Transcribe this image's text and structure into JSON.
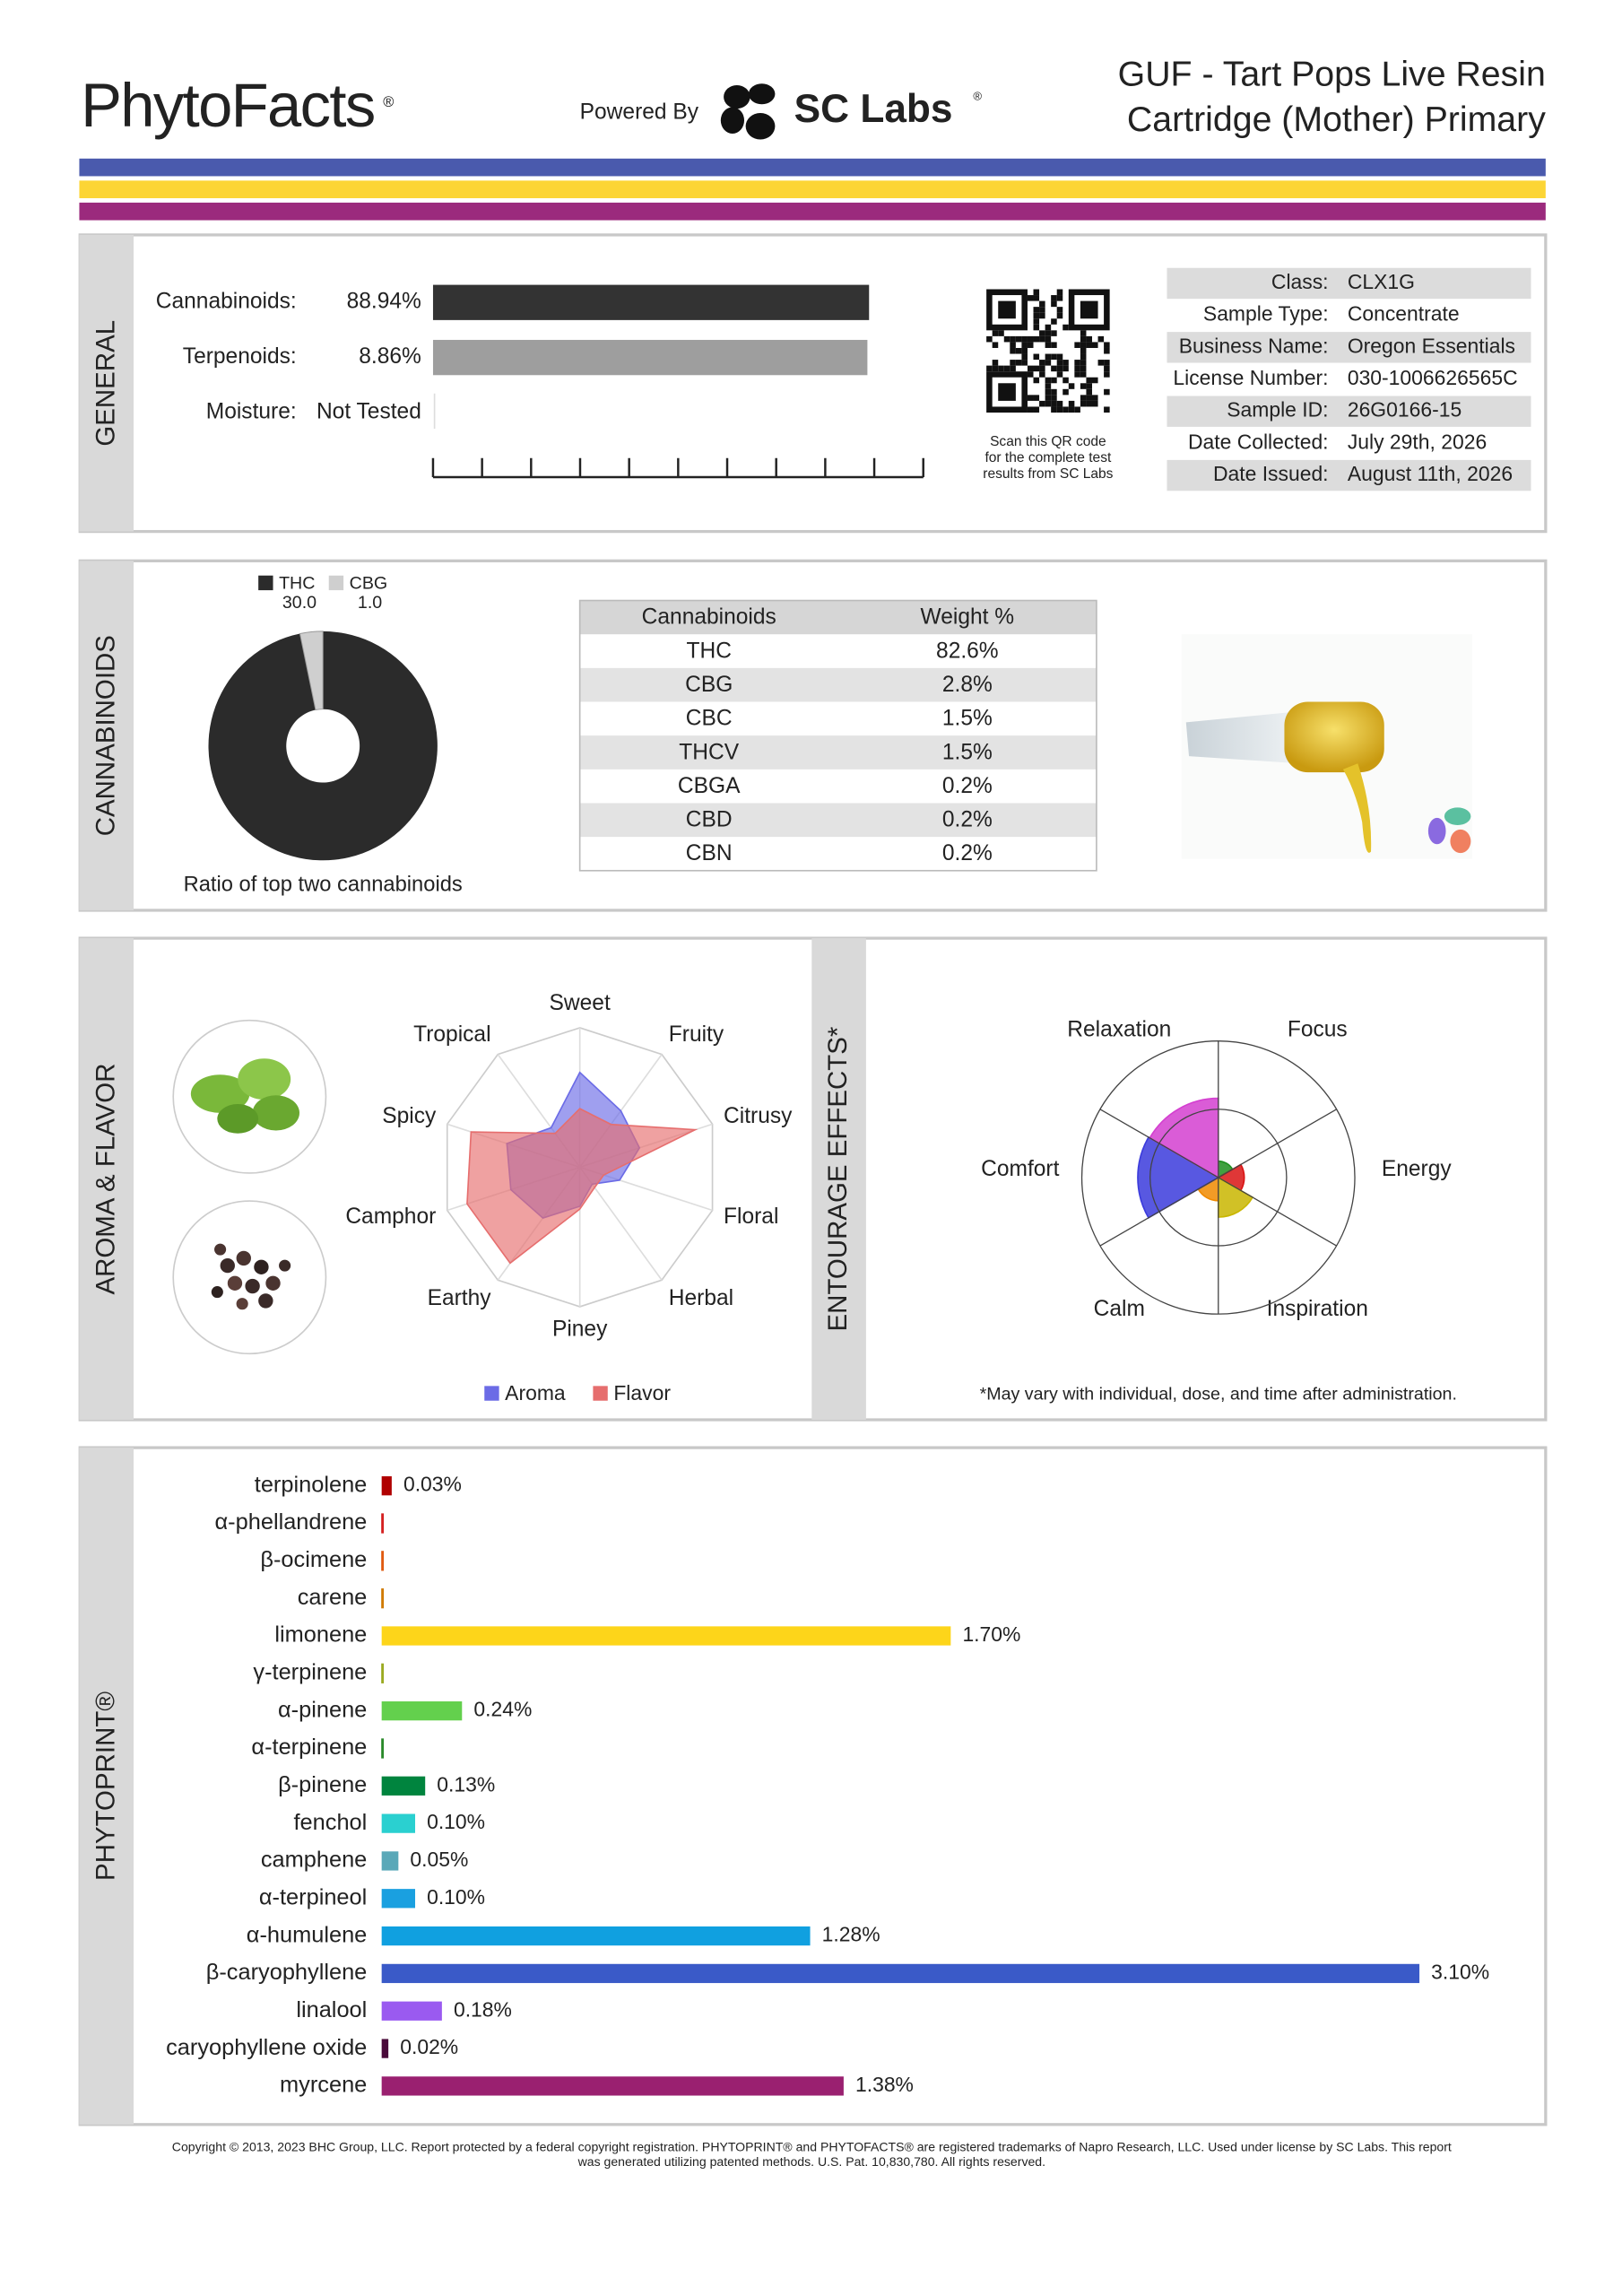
{
  "header": {
    "brand": "PhytoFacts",
    "brand_mark": "®",
    "powered_by": "Powered By",
    "lab": "SC Labs",
    "lab_mark": "®",
    "title_lines": [
      "GUF - Tart Pops Live Resin",
      "Cartridge (Mother) Primary"
    ],
    "stripe_colors": [
      "#4a5aad",
      "#fcd535",
      "#9b2a7d"
    ]
  },
  "general": {
    "section_label": "GENERAL",
    "type": "bar",
    "xlim": [
      0,
      100
    ],
    "xticks": [
      0,
      10,
      20,
      30,
      40,
      50,
      60,
      70,
      80,
      90,
      100
    ],
    "rows": [
      {
        "label": "Cannabinoids:",
        "value": 88.94,
        "value_label": "88.94%",
        "color": "#333333"
      },
      {
        "label": "Terpenoids:",
        "value": 8.86,
        "value_label": "8.86%",
        "color": "#9e9e9e",
        "xlim": [
          0,
          10
        ]
      },
      {
        "label": "Moisture:",
        "value": null,
        "value_label": "Not Tested"
      }
    ],
    "qr_caption": [
      "Scan this QR code",
      "for the complete test",
      "results from SC Labs"
    ],
    "info": [
      [
        "Class:",
        "CLX1G"
      ],
      [
        "Sample Type:",
        "Concentrate"
      ],
      [
        "Business Name:",
        "Oregon Essentials"
      ],
      [
        "License Number:",
        "030-1006626565C"
      ],
      [
        "Sample ID:",
        "26G0166-15"
      ],
      [
        "Date Collected:",
        "July 29th, 2026"
      ],
      [
        "Date Issued:",
        "August 11th, 2026"
      ]
    ]
  },
  "cannabinoids": {
    "section_label": "CANNABINOIDS",
    "pie": {
      "type": "pie",
      "series": [
        {
          "name": "THC",
          "value": 30,
          "value_label": "30.0",
          "color": "#2b2b2b"
        },
        {
          "name": "CBG",
          "value": 1,
          "value_label": "1.0",
          "color": "#cfcfcf"
        }
      ],
      "caption": "Ratio of top two cannabinoids"
    },
    "table": {
      "header": [
        "Cannabinoids",
        "Weight %"
      ],
      "rows": [
        [
          "THC",
          "82.6%"
        ],
        [
          "CBG",
          "2.8%"
        ],
        [
          "CBC",
          "1.5%"
        ],
        [
          "THCV",
          "1.5%"
        ],
        [
          "CBGA",
          "0.2%"
        ],
        [
          "CBD",
          "0.2%"
        ],
        [
          "CBN",
          "0.2%"
        ]
      ]
    }
  },
  "aroma": {
    "section_label": "AROMA & FLAVOR",
    "type": "radar",
    "axes": [
      "Sweet",
      "Fruity",
      "Citrusy",
      "Floral",
      "Herbal",
      "Piney",
      "Earthy",
      "Camphor",
      "Spicy",
      "Tropical"
    ],
    "rlim": [
      0,
      1
    ],
    "series": [
      {
        "name": "Aroma",
        "color": "#6b6be6",
        "values": [
          0.68,
          0.5,
          0.45,
          0.3,
          0.15,
          0.28,
          0.45,
          0.52,
          0.55,
          0.35
        ]
      },
      {
        "name": "Flavor",
        "color": "#e66e6e",
        "values": [
          0.42,
          0.38,
          0.87,
          0.18,
          0.18,
          0.3,
          0.85,
          0.85,
          0.82,
          0.3
        ]
      }
    ]
  },
  "entourage": {
    "section_label": "ENTOURAGE EFFECTS*",
    "type": "polar_area",
    "categories": [
      "Focus",
      "Energy",
      "Inspiration",
      "Calm",
      "Comfort",
      "Relaxation"
    ],
    "colors": [
      "#1f8f1f",
      "#d91414",
      "#c9b600",
      "#f08a00",
      "#3b3bdc",
      "#d43fd0"
    ],
    "values": [
      0.12,
      0.19,
      0.29,
      0.17,
      0.59,
      0.58
    ],
    "rlim": [
      0,
      1
    ],
    "rticks": [
      0.5,
      1
    ],
    "footnote": "*May vary with individual, dose, and time after administration."
  },
  "phytoprint": {
    "section_label": "PHYTOPRINT®",
    "type": "bar",
    "xlim": [
      0,
      3.1
    ],
    "categories": [
      "terpinolene",
      "α-phellandrene",
      "β-ocimene",
      "carene",
      "limonene",
      "γ-terpinene",
      "α-pinene",
      "α-terpinene",
      "β-pinene",
      "fenchol",
      "camphene",
      "α-terpineol",
      "α-humulene",
      "β-caryophyllene",
      "linalool",
      "caryophyllene oxide",
      "myrcene"
    ],
    "colors": [
      "#b00000",
      "#d42020",
      "#e05a10",
      "#d07a00",
      "#fdd51a",
      "#9aaa20",
      "#63d04d",
      "#2a8a2a",
      "#00843e",
      "#2ad0d0",
      "#5aa8b8",
      "#1aa0e0",
      "#10a0e0",
      "#3a5ac8",
      "#9a5af0",
      "#4a0a3a",
      "#9a2070"
    ],
    "values": [
      0.03,
      0.005,
      0.005,
      0.005,
      1.7,
      0.005,
      0.24,
      0.005,
      0.13,
      0.1,
      0.05,
      0.1,
      1.28,
      3.1,
      0.18,
      0.02,
      1.38
    ],
    "value_labels": [
      "0.03%",
      null,
      null,
      null,
      "1.70%",
      null,
      "0.24%",
      null,
      "0.13%",
      "0.10%",
      "0.05%",
      "0.10%",
      "1.28%",
      "3.10%",
      "0.18%",
      "0.02%",
      "1.38%"
    ]
  },
  "footer": {
    "lines": [
      "Copyright © 2013, 2023 BHC Group, LLC. Report protected by a federal copyright registration. PHYTOPRINT® and PHYTOFACTS® are registered trademarks of Napro Research, LLC. Used under license by SC Labs. This report",
      "was generated utilizing patented methods. U.S. Pat. 10,830,780. All rights reserved."
    ]
  }
}
